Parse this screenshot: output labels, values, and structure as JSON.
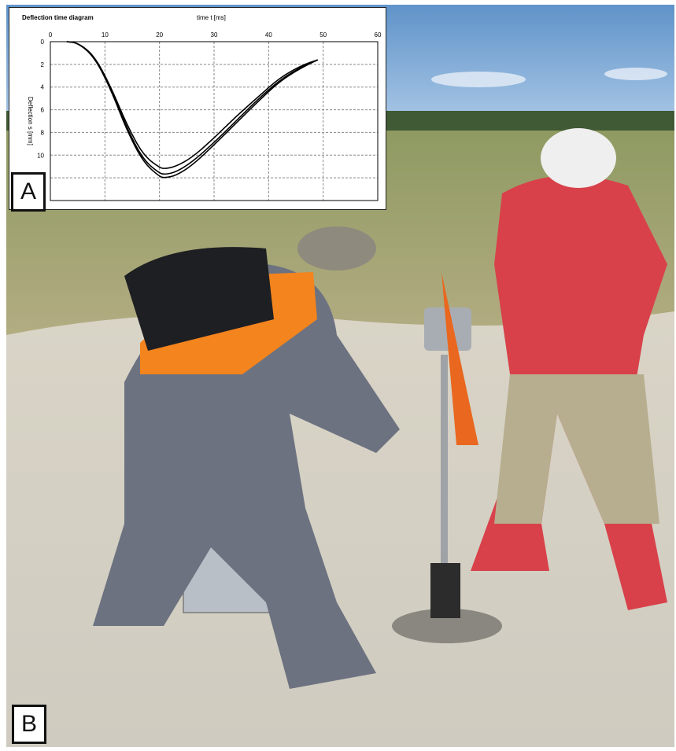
{
  "figure": {
    "panel_a_label": "A",
    "panel_b_label": "B"
  },
  "chart_data": {
    "type": "line",
    "title": "Deflection time diagram",
    "xlabel": "time t [ms]",
    "ylabel": "Deflection s [mm]",
    "xlim": [
      0,
      60
    ],
    "ylim": [
      0,
      14
    ],
    "y_inverted": true,
    "x_ticks": [
      0,
      10,
      20,
      30,
      40,
      50,
      60
    ],
    "y_ticks": [
      0,
      2,
      4,
      6,
      8,
      10,
      12,
      14
    ],
    "grid": true,
    "legend": "none",
    "series": [
      {
        "x": [
          3,
          5,
          8,
          11,
          14,
          17,
          20,
          21,
          23,
          26,
          30,
          34,
          38,
          42,
          46,
          49
        ],
        "y": [
          0,
          0.1,
          1.2,
          4.0,
          7.6,
          10.4,
          11.6,
          11.7,
          11.5,
          10.6,
          8.9,
          7.0,
          5.1,
          3.4,
          2.2,
          1.6
        ]
      },
      {
        "x": [
          3,
          5,
          8,
          11,
          14,
          17,
          20,
          21,
          23,
          26,
          30,
          34,
          38,
          42,
          46,
          49
        ],
        "y": [
          0,
          0.1,
          1.2,
          3.9,
          7.3,
          10.0,
          11.1,
          11.2,
          11.0,
          10.2,
          8.5,
          6.6,
          4.9,
          3.2,
          2.1,
          1.6
        ]
      },
      {
        "x": [
          3,
          5,
          8,
          11,
          14,
          17,
          20,
          21,
          23,
          26,
          30,
          34,
          38,
          42,
          46,
          49
        ],
        "y": [
          0,
          0.1,
          1.3,
          4.1,
          7.8,
          10.6,
          11.9,
          12.0,
          11.8,
          10.9,
          9.1,
          7.2,
          5.3,
          3.5,
          2.3,
          1.6
        ]
      }
    ]
  }
}
